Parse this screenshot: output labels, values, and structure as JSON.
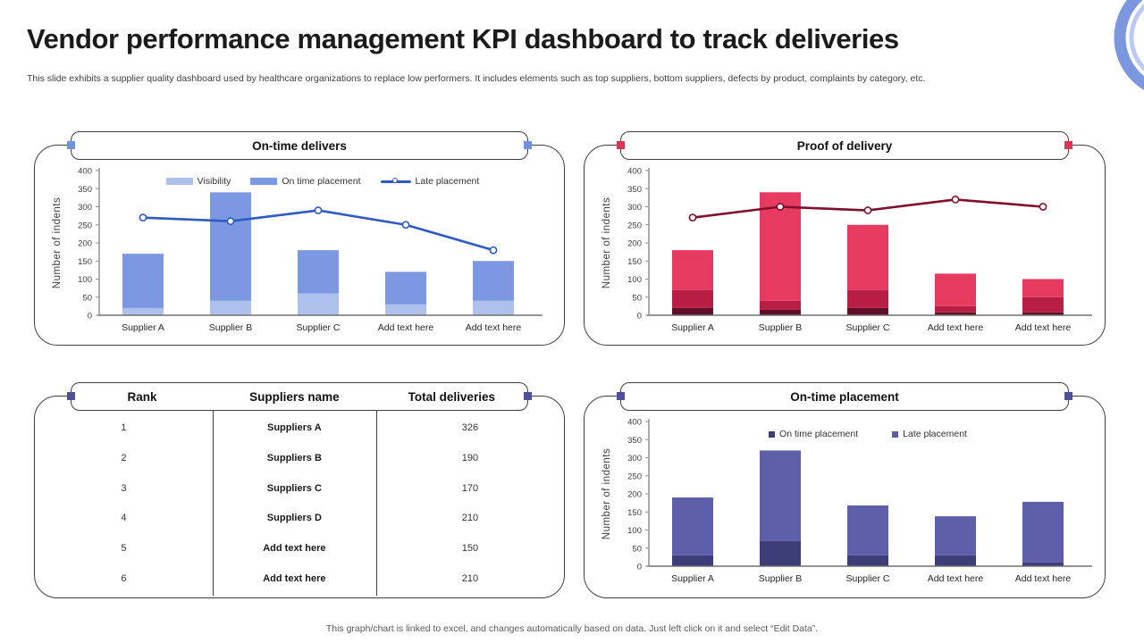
{
  "slide": {
    "title": "Vendor performance management KPI dashboard to track deliveries",
    "subtitle": "This slide exhibits a supplier quality dashboard used by healthcare organizations to replace low performers. It includes elements such as top suppliers, bottom suppliers, defects by product, complaints by category, etc.",
    "footer": "This graph/chart is linked to excel, and changes automatically based on data. Just left click on it and select “Edit Data”."
  },
  "decor": {
    "ring_outer_color": "#7b97e0",
    "ring_inner_color": "#bdc9f1"
  },
  "chart_data": [
    {
      "id": "on-time-delivers",
      "type": "bar",
      "title": "On-time delivers",
      "ylabel": "Number of indents",
      "ylim": [
        0,
        400
      ],
      "ytick_step": 50,
      "grid": false,
      "legend_position": "top-center",
      "accent": "#7292dd",
      "categories": [
        "Supplier A",
        "Supplier B",
        "Supplier C",
        "Add text here",
        "Add text here"
      ],
      "series": [
        {
          "name": "Visibility",
          "type": "bar",
          "color": "#aec1ec",
          "values": [
            20,
            40,
            60,
            30,
            40
          ]
        },
        {
          "name": "On time placement",
          "type": "bar",
          "color": "#7d98e3",
          "values": [
            150,
            300,
            120,
            90,
            110
          ]
        },
        {
          "name": "Late placement",
          "type": "line",
          "color": "#2d5bbf",
          "values": [
            270,
            260,
            290,
            250,
            180
          ]
        }
      ],
      "legend": {
        "show": true,
        "swatch": "bar"
      }
    },
    {
      "id": "proof-of-delivery",
      "type": "bar",
      "title": "Proof of delivery",
      "ylabel": "Number of indents",
      "ylim": [
        0,
        400
      ],
      "ytick_step": 50,
      "grid": false,
      "legend_position": "none",
      "accent": "#d93556",
      "categories": [
        "Supplier A",
        "Supplier B",
        "Supplier C",
        "Add text here",
        "Add text here"
      ],
      "series": [
        {
          "name": "",
          "type": "bar",
          "color": "#5e0e26",
          "values": [
            20,
            15,
            20,
            8,
            8
          ]
        },
        {
          "name": "",
          "type": "bar",
          "color": "#b81e44",
          "values": [
            50,
            25,
            50,
            17,
            42
          ]
        },
        {
          "name": "",
          "type": "bar",
          "color": "#e73a60",
          "values": [
            110,
            300,
            180,
            90,
            50
          ]
        },
        {
          "name": "",
          "type": "line",
          "color": "#7e102d",
          "values": [
            270,
            300,
            290,
            320,
            300
          ]
        }
      ],
      "legend": {
        "show": false,
        "swatch": "square"
      }
    },
    {
      "id": "on-time-placement",
      "type": "bar",
      "title": "On-time placement",
      "ylabel": "Number of indents",
      "ylim": [
        0,
        400
      ],
      "ytick_step": 50,
      "grid": false,
      "legend_position": "top-center",
      "accent": "#50509a",
      "categories": [
        "Supplier A",
        "Supplier B",
        "Supplier C",
        "Add text here",
        "Add text here"
      ],
      "series": [
        {
          "name": "On time placement",
          "type": "bar",
          "color": "#3d3d7a",
          "values": [
            30,
            70,
            30,
            30,
            10
          ]
        },
        {
          "name": "Late placement",
          "type": "bar",
          "color": "#5d5fa9",
          "values": [
            160,
            250,
            138,
            108,
            168
          ]
        }
      ],
      "legend": {
        "show": true,
        "swatch": "square"
      }
    }
  ],
  "table": {
    "accent": "#50509a",
    "columns": [
      "Rank",
      "Suppliers name",
      "Total deliveries"
    ],
    "rows": [
      {
        "rank": "1",
        "name": "Suppliers A",
        "value": "326"
      },
      {
        "rank": "2",
        "name": "Suppliers B",
        "value": "190"
      },
      {
        "rank": "3",
        "name": "Suppliers C",
        "value": "170"
      },
      {
        "rank": "4",
        "name": "Suppliers D",
        "value": "210"
      },
      {
        "rank": "5",
        "name": "Add text here",
        "value": "150"
      },
      {
        "rank": "6",
        "name": "Add text here",
        "value": "210"
      }
    ]
  }
}
